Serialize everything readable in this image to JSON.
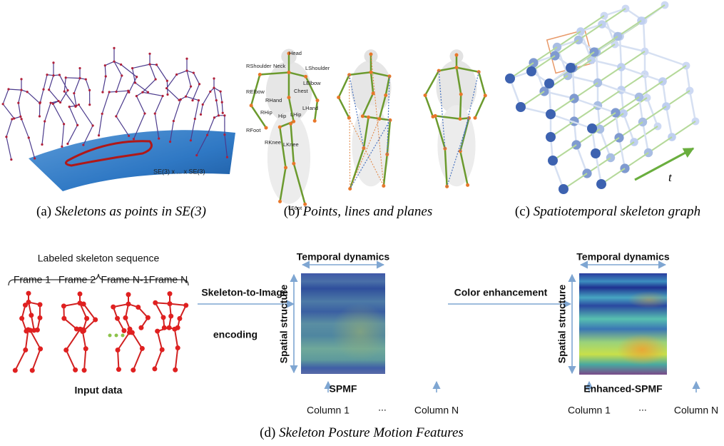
{
  "panel_a": {
    "surface_label": "SE(3) x ... x SE(3)",
    "caption": {
      "label": "(a)",
      "text": "Skeletons as points in SE(3)"
    }
  },
  "panel_b": {
    "joints": [
      "Head",
      "RShoulder",
      "Neck",
      "LShoulder",
      "Chest",
      "RElbow",
      "LElbow",
      "RHand",
      "LHand",
      "RHip",
      "Hip",
      "LHip",
      "RFoot",
      "RKnee",
      "LKnee",
      "LFoot"
    ],
    "caption": {
      "label": "(b)",
      "text": "Points, lines and planes"
    }
  },
  "panel_c": {
    "axis_label": "t",
    "caption": {
      "label": "(c)",
      "text": "Spatiotemporal skeleton graph"
    }
  },
  "panel_d": {
    "sequence_title": "Labeled skeleton sequence",
    "frames": [
      "Frame 1",
      "Frame 2",
      "Frame N-1",
      "Frame N"
    ],
    "input_label": "Input data",
    "step1": [
      "Skeleton-to-Image",
      "encoding"
    ],
    "step2": "Color enhancement",
    "image1": {
      "top": "Temporal dynamics",
      "side": "Spatial structure",
      "name": "SPMF",
      "columns": [
        "Column 1",
        "...",
        "Column N"
      ]
    },
    "image2": {
      "top": "Temporal dynamics",
      "side": "Spatial structure",
      "name": "Enhanced-SPMF",
      "columns": [
        "Column 1",
        "...",
        "Column N"
      ]
    },
    "caption": {
      "label": "(d)",
      "text": "Skeleton Posture Motion Features"
    }
  }
}
